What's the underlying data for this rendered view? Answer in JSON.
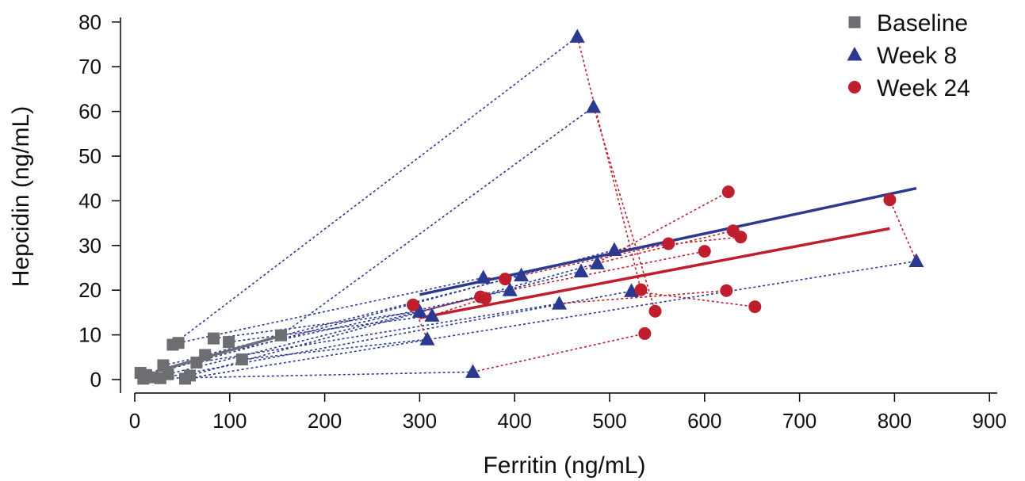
{
  "chart_data": {
    "type": "scatter",
    "xlabel": "Ferritin (ng/mL)",
    "ylabel": "Hepcidin (ng/mL)",
    "xlim": [
      -10,
      930
    ],
    "ylim": [
      -2,
      82
    ],
    "xticks": [
      0,
      100,
      200,
      300,
      400,
      500,
      600,
      700,
      800,
      900
    ],
    "yticks": [
      0,
      10,
      20,
      30,
      40,
      50,
      60,
      70,
      80
    ],
    "legend_position": "top-right",
    "colors": {
      "baseline": "#6d6e71",
      "week8": "#2b3990",
      "week24": "#be1e2d"
    },
    "series": [
      {
        "name": "Baseline",
        "marker": "square",
        "color": "#6d6e71",
        "points": [
          [
            6,
            1.5
          ],
          [
            9,
            0.2
          ],
          [
            12,
            1.0
          ],
          [
            15,
            0.5
          ],
          [
            27,
            0.3
          ],
          [
            30,
            3.2
          ],
          [
            35,
            1.2
          ],
          [
            40,
            7.8
          ],
          [
            46,
            8.2
          ],
          [
            53,
            0.2
          ],
          [
            58,
            0.9
          ],
          [
            65,
            3.8
          ],
          [
            74,
            5.5
          ],
          [
            83,
            9.2
          ],
          [
            99,
            8.4
          ],
          [
            113,
            4.5
          ],
          [
            154,
            9.9
          ]
        ]
      },
      {
        "name": "Week 8",
        "marker": "triangle",
        "color": "#2b3990",
        "points": [
          [
            300,
            15.2
          ],
          [
            308,
            9.0
          ],
          [
            313,
            14.3
          ],
          [
            356,
            1.7
          ],
          [
            367,
            22.8
          ],
          [
            395,
            20.0
          ],
          [
            407,
            23.3
          ],
          [
            447,
            17.0
          ],
          [
            466,
            76.7
          ],
          [
            470,
            24.2
          ],
          [
            483,
            61.0
          ],
          [
            487,
            26.0
          ],
          [
            505,
            29.0
          ],
          [
            523,
            19.8
          ],
          [
            823,
            26.5
          ]
        ]
      },
      {
        "name": "Week 24",
        "marker": "circle",
        "color": "#be1e2d",
        "points": [
          [
            293,
            16.7
          ],
          [
            364,
            18.5
          ],
          [
            369,
            18.2
          ],
          [
            390,
            22.5
          ],
          [
            533,
            20.1
          ],
          [
            537,
            10.3
          ],
          [
            548,
            15.3
          ],
          [
            562,
            30.4
          ],
          [
            600,
            28.7
          ],
          [
            623,
            19.9
          ],
          [
            625,
            42.0
          ],
          [
            630,
            33.3
          ],
          [
            638,
            31.9
          ],
          [
            653,
            16.3
          ],
          [
            795,
            40.2
          ]
        ]
      }
    ],
    "connectors": [
      {
        "color": "#2b3990",
        "pairs": [
          [
            [
              40,
              7.8
            ],
            [
              466,
              76.7
            ]
          ],
          [
            [
              154,
              9.9
            ],
            [
              483,
              61.0
            ]
          ],
          [
            [
              9,
              0.2
            ],
            [
              356,
              1.7
            ]
          ],
          [
            [
              46,
              8.2
            ],
            [
              367,
              22.8
            ]
          ],
          [
            [
              83,
              9.2
            ],
            [
              300,
              15.2
            ]
          ],
          [
            [
              99,
              8.4
            ],
            [
              313,
              14.3
            ]
          ],
          [
            [
              113,
              4.5
            ],
            [
              308,
              9.0
            ]
          ],
          [
            [
              30,
              3.2
            ],
            [
              395,
              20.0
            ]
          ],
          [
            [
              74,
              5.5
            ],
            [
              407,
              23.3
            ]
          ],
          [
            [
              65,
              3.8
            ],
            [
              447,
              17.0
            ]
          ],
          [
            [
              35,
              1.2
            ],
            [
              470,
              24.2
            ]
          ],
          [
            [
              58,
              0.9
            ],
            [
              487,
              26.0
            ]
          ],
          [
            [
              12,
              1.0
            ],
            [
              505,
              29.0
            ]
          ],
          [
            [
              27,
              0.3
            ],
            [
              523,
              19.8
            ]
          ],
          [
            [
              53,
              0.2
            ],
            [
              823,
              26.5
            ]
          ]
        ]
      },
      {
        "color": "#be1e2d",
        "pairs": [
          [
            [
              483,
              61.0
            ],
            [
              548,
              15.3
            ]
          ],
          [
            [
              466,
              76.7
            ],
            [
              533,
              20.1
            ]
          ],
          [
            [
              356,
              1.7
            ],
            [
              537,
              10.3
            ]
          ],
          [
            [
              470,
              24.2
            ],
            [
              625,
              42.0
            ]
          ],
          [
            [
              367,
              22.8
            ],
            [
              390,
              22.5
            ]
          ],
          [
            [
              407,
              23.3
            ],
            [
              562,
              30.4
            ]
          ],
          [
            [
              395,
              20.0
            ],
            [
              600,
              28.7
            ]
          ],
          [
            [
              487,
              26.0
            ],
            [
              630,
              33.3
            ]
          ],
          [
            [
              505,
              29.0
            ],
            [
              638,
              31.9
            ]
          ],
          [
            [
              523,
              19.8
            ],
            [
              653,
              16.3
            ]
          ],
          [
            [
              447,
              17.0
            ],
            [
              623,
              19.9
            ]
          ],
          [
            [
              300,
              15.2
            ],
            [
              364,
              18.5
            ]
          ],
          [
            [
              313,
              14.3
            ],
            [
              369,
              18.2
            ]
          ],
          [
            [
              308,
              9.0
            ],
            [
              293,
              16.7
            ]
          ],
          [
            [
              823,
              26.5
            ],
            [
              795,
              40.2
            ]
          ]
        ]
      }
    ],
    "fit_lines": [
      {
        "series": "Baseline",
        "color": "#6d6e71",
        "from": [
          22,
          1.8
        ],
        "to": [
          154,
          9.8
        ]
      },
      {
        "series": "Week 8",
        "color": "#2b3990",
        "from": [
          300,
          19.0
        ],
        "to": [
          823,
          42.8
        ]
      },
      {
        "series": "Week 24",
        "color": "#be1e2d",
        "from": [
          300,
          13.8
        ],
        "to": [
          795,
          33.8
        ]
      }
    ]
  }
}
